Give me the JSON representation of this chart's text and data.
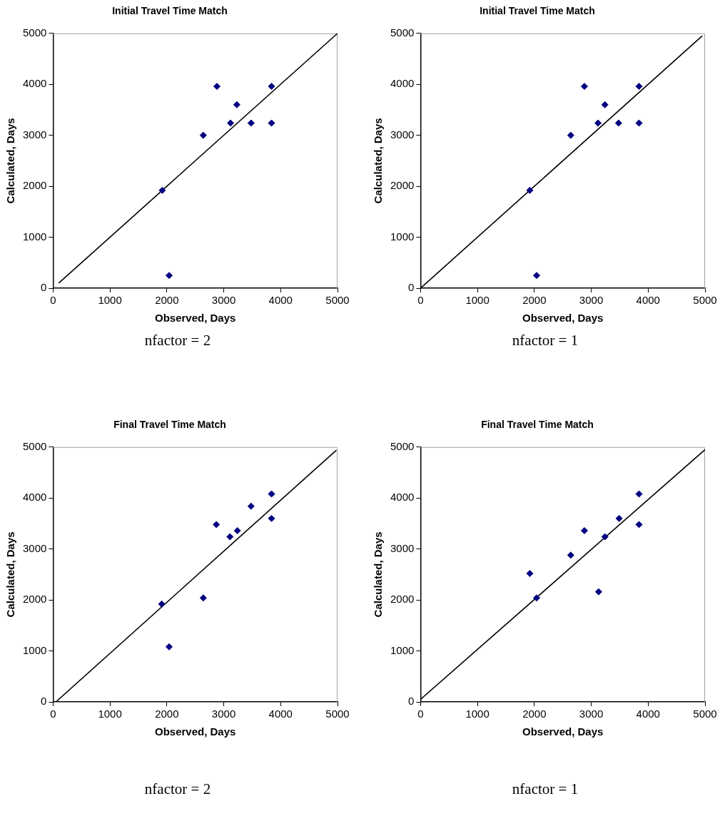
{
  "chart_data": [
    {
      "type": "scatter",
      "title": "Initial Travel Time Match",
      "xlabel": "Observed, Days",
      "ylabel": "Calculated, Days",
      "grid": false,
      "legend": false,
      "xlim": [
        0,
        5000
      ],
      "ylim": [
        0,
        5000
      ],
      "xticks": [
        0,
        1000,
        2000,
        3000,
        4000,
        5000
      ],
      "yticks": [
        0,
        1000,
        2000,
        3000,
        4000,
        5000
      ],
      "annotations": [
        "nfactor = 2"
      ],
      "series": [
        {
          "color": "#000080",
          "marker": "diamond",
          "x": [
            1920,
            2040,
            2640,
            2880,
            3120,
            3230,
            3480,
            3840,
            3840
          ],
          "values": [
            1920,
            250,
            3000,
            3960,
            3240,
            3600,
            3240,
            3960,
            3240
          ]
        },
        {
          "type": "line",
          "color": "#000000",
          "marker": "none",
          "x": [
            100,
            5000
          ],
          "values": [
            100,
            5000
          ]
        }
      ]
    },
    {
      "type": "scatter",
      "title": "Initial Travel Time Match",
      "xlabel": "Observed, Days",
      "ylabel": "Calculated, Days",
      "grid": false,
      "legend": false,
      "xlim": [
        0,
        5000
      ],
      "ylim": [
        0,
        5000
      ],
      "xticks": [
        0,
        1000,
        2000,
        3000,
        4000,
        5000
      ],
      "yticks": [
        0,
        1000,
        2000,
        3000,
        4000,
        5000
      ],
      "annotations": [
        "nfactor = 1"
      ],
      "series": [
        {
          "color": "#000080",
          "marker": "diamond",
          "x": [
            1920,
            2040,
            2640,
            2880,
            3120,
            3240,
            3480,
            3840,
            3840
          ],
          "values": [
            1920,
            250,
            3000,
            3960,
            3240,
            3600,
            3240,
            3960,
            3240
          ]
        },
        {
          "type": "line",
          "color": "#000000",
          "marker": "none",
          "x": [
            0,
            4950
          ],
          "values": [
            0,
            4950
          ]
        }
      ]
    },
    {
      "type": "scatter",
      "title": "Final Travel Time Match",
      "xlabel": "Observed, Days",
      "ylabel": "Calculated, Days",
      "grid": false,
      "legend": false,
      "xlim": [
        0,
        5000
      ],
      "ylim": [
        0,
        5000
      ],
      "xticks": [
        0,
        1000,
        2000,
        3000,
        4000,
        5000
      ],
      "yticks": [
        0,
        1000,
        2000,
        3000,
        4000,
        5000
      ],
      "annotations": [
        "nfactor = 2"
      ],
      "series": [
        {
          "color": "#000080",
          "marker": "diamond",
          "x": [
            1910,
            2040,
            2640,
            2870,
            3110,
            3240,
            3480,
            3840,
            3840
          ],
          "values": [
            1920,
            1080,
            2040,
            3480,
            3240,
            3360,
            3840,
            4080,
            3600
          ]
        },
        {
          "type": "line",
          "color": "#000000",
          "marker": "none",
          "x": [
            50,
            4980
          ],
          "values": [
            0,
            4940
          ]
        }
      ]
    },
    {
      "type": "scatter",
      "title": "Final Travel Time Match",
      "xlabel": "Observed, Days",
      "ylabel": "Calculated, Days",
      "grid": false,
      "legend": false,
      "xlim": [
        0,
        5000
      ],
      "ylim": [
        0,
        5000
      ],
      "xticks": [
        0,
        1000,
        2000,
        3000,
        4000,
        5000
      ],
      "yticks": [
        0,
        1000,
        2000,
        3000,
        4000,
        5000
      ],
      "annotations": [
        "nfactor = 1"
      ],
      "series": [
        {
          "color": "#000080",
          "marker": "diamond",
          "x": [
            1920,
            2040,
            2640,
            2880,
            3130,
            3240,
            3490,
            3840,
            3840
          ],
          "values": [
            2520,
            2040,
            2880,
            3360,
            2160,
            3240,
            3600,
            4080,
            3480
          ]
        },
        {
          "type": "line",
          "color": "#000000",
          "marker": "none",
          "x": [
            0,
            5000
          ],
          "values": [
            50,
            4950
          ]
        }
      ]
    }
  ]
}
